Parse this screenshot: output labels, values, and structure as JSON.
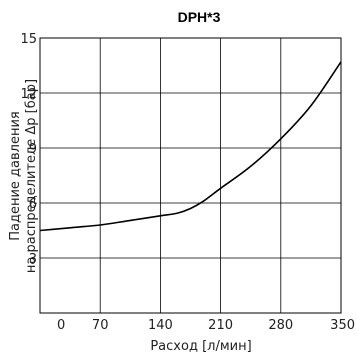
{
  "chart_data": {
    "type": "line",
    "title": "DPH*3",
    "xlabel": "Расход [л/мин]",
    "ylabel_lines": [
      "Падение давления",
      "на распределителе Δp [бар]"
    ],
    "xlim": [
      0,
      350
    ],
    "ylim": [
      0,
      15
    ],
    "x_ticks": [
      0,
      70,
      140,
      210,
      280,
      350
    ],
    "y_ticks": [
      3,
      6,
      9,
      12,
      15
    ],
    "grid": true,
    "series": [
      {
        "x": [
          0,
          35,
          70,
          105,
          140,
          160,
          175,
          190,
          210,
          245,
          280,
          315,
          350
        ],
        "values": [
          4.5,
          4.65,
          4.8,
          5.05,
          5.3,
          5.45,
          5.7,
          6.1,
          6.8,
          8.0,
          9.5,
          11.3,
          13.7
        ]
      }
    ]
  }
}
